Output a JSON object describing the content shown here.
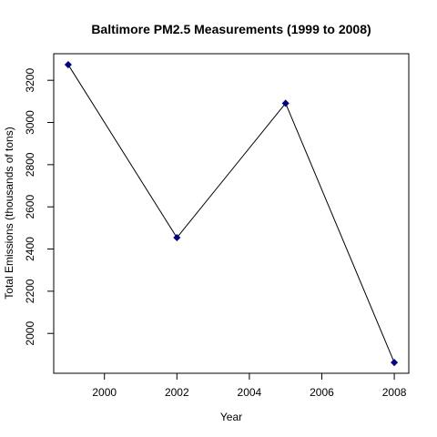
{
  "chart_data": {
    "type": "line",
    "title": "Baltimore PM2.5 Measurements (1999 to 2008)",
    "xlabel": "Year",
    "ylabel": "Total Emissions (thousands of tons)",
    "x": [
      1999,
      2002,
      2005,
      2008
    ],
    "y": [
      3274,
      2454,
      3091,
      1862
    ],
    "xlim": [
      1998.6,
      2008.4
    ],
    "ylim": [
      1811,
      3326
    ],
    "xticks": [
      2000,
      2002,
      2004,
      2006,
      2008
    ],
    "yticks": [
      2000,
      2200,
      2400,
      2600,
      2800,
      3000,
      3200
    ],
    "line_color": "#000000",
    "marker_color": "#00008B",
    "grid": false,
    "legend": "none"
  }
}
